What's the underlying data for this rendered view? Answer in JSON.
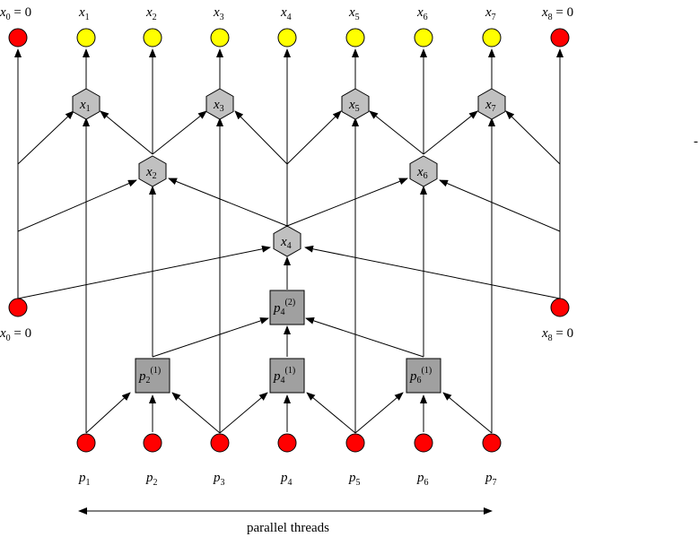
{
  "colors": {
    "red": "#ff0000",
    "yellow": "#ffff00",
    "gray_node": "#c0c0c0",
    "gray_box": "#a0a0a0",
    "stroke": "#000000"
  },
  "top_labels": [
    {
      "base": "x",
      "sub": "0",
      "suffix": " = 0"
    },
    {
      "base": "x",
      "sub": "1",
      "suffix": ""
    },
    {
      "base": "x",
      "sub": "2",
      "suffix": ""
    },
    {
      "base": "x",
      "sub": "3",
      "suffix": ""
    },
    {
      "base": "x",
      "sub": "4",
      "suffix": ""
    },
    {
      "base": "x",
      "sub": "5",
      "suffix": ""
    },
    {
      "base": "x",
      "sub": "6",
      "suffix": ""
    },
    {
      "base": "x",
      "sub": "7",
      "suffix": ""
    },
    {
      "base": "x",
      "sub": "8",
      "suffix": " = 0"
    }
  ],
  "boundary_labels": [
    {
      "base": "x",
      "sub": "0",
      "suffix": " = 0"
    },
    {
      "base": "x",
      "sub": "8",
      "suffix": " = 0"
    }
  ],
  "hex_nodes": [
    {
      "base": "x",
      "sub": "1"
    },
    {
      "base": "x",
      "sub": "3"
    },
    {
      "base": "x",
      "sub": "5"
    },
    {
      "base": "x",
      "sub": "7"
    },
    {
      "base": "x",
      "sub": "2"
    },
    {
      "base": "x",
      "sub": "6"
    },
    {
      "base": "x",
      "sub": "4"
    }
  ],
  "box_nodes": [
    {
      "base": "p",
      "sub": "2",
      "sup": "(1)"
    },
    {
      "base": "p",
      "sub": "4",
      "sup": "(1)"
    },
    {
      "base": "p",
      "sub": "6",
      "sup": "(1)"
    },
    {
      "base": "p",
      "sub": "4",
      "sup": "(2)"
    }
  ],
  "bottom_labels": [
    {
      "base": "p",
      "sub": "1"
    },
    {
      "base": "p",
      "sub": "2"
    },
    {
      "base": "p",
      "sub": "3"
    },
    {
      "base": "p",
      "sub": "4"
    },
    {
      "base": "p",
      "sub": "5"
    },
    {
      "base": "p",
      "sub": "6"
    },
    {
      "base": "p",
      "sub": "7"
    }
  ],
  "caption": "parallel threads",
  "stray_mark": "-"
}
